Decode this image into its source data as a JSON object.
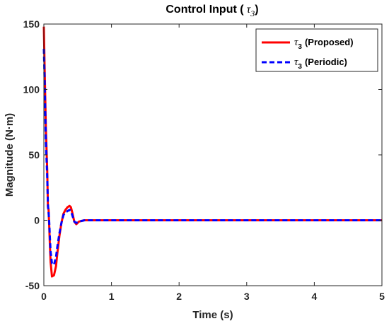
{
  "chart_data": {
    "type": "line",
    "title": {
      "prefix": "Control Input (",
      "symbol": "τ",
      "subscript": "3",
      "suffix": ")"
    },
    "xlabel": "Time (s)",
    "ylabel": "Magnitude (N·m)",
    "xlim": [
      0,
      5
    ],
    "ylim": [
      -50,
      150
    ],
    "xticks": [
      0,
      1,
      2,
      3,
      4,
      5
    ],
    "yticks": [
      -50,
      0,
      50,
      100,
      150
    ],
    "grid": false,
    "legend_position": "top-right",
    "series": [
      {
        "name_symbol": "τ",
        "name_subscript": "3",
        "name": "(Proposed)",
        "color": "#ff0000",
        "style": "solid",
        "x": [
          0,
          0.01,
          0.02,
          0.03,
          0.05,
          0.06,
          0.07,
          0.08,
          0.09,
          0.1,
          0.12,
          0.15,
          0.18,
          0.2,
          0.23,
          0.26,
          0.29,
          0.32,
          0.35,
          0.38,
          0.4,
          0.42,
          0.45,
          0.48,
          0.52,
          0.6,
          0.8,
          1,
          2,
          3,
          4,
          5
        ],
        "y": [
          148,
          120,
          95,
          70,
          38,
          10,
          8,
          -5,
          -20,
          -32,
          -43,
          -42,
          -35,
          -25,
          -12,
          -2,
          5,
          8,
          10,
          11,
          10,
          6,
          -1,
          -3,
          -1,
          0,
          0,
          0,
          0,
          0,
          0,
          0
        ]
      },
      {
        "name_symbol": "τ",
        "name_subscript": "3",
        "name": "(Periodic)",
        "color": "#0000ff",
        "style": "dashed",
        "x": [
          0,
          0.01,
          0.02,
          0.03,
          0.05,
          0.06,
          0.07,
          0.08,
          0.09,
          0.1,
          0.12,
          0.15,
          0.18,
          0.2,
          0.23,
          0.26,
          0.29,
          0.32,
          0.35,
          0.38,
          0.4,
          0.42,
          0.45,
          0.48,
          0.52,
          0.6,
          0.8,
          1,
          2,
          3,
          4,
          5
        ],
        "y": [
          131,
          110,
          85,
          60,
          33,
          12,
          6,
          -2,
          -14,
          -24,
          -33,
          -34,
          -28,
          -20,
          -10,
          -2,
          4,
          6,
          7,
          8,
          7,
          4,
          -1,
          -2,
          -1,
          0,
          0,
          0,
          0,
          0,
          0,
          0
        ]
      }
    ]
  }
}
